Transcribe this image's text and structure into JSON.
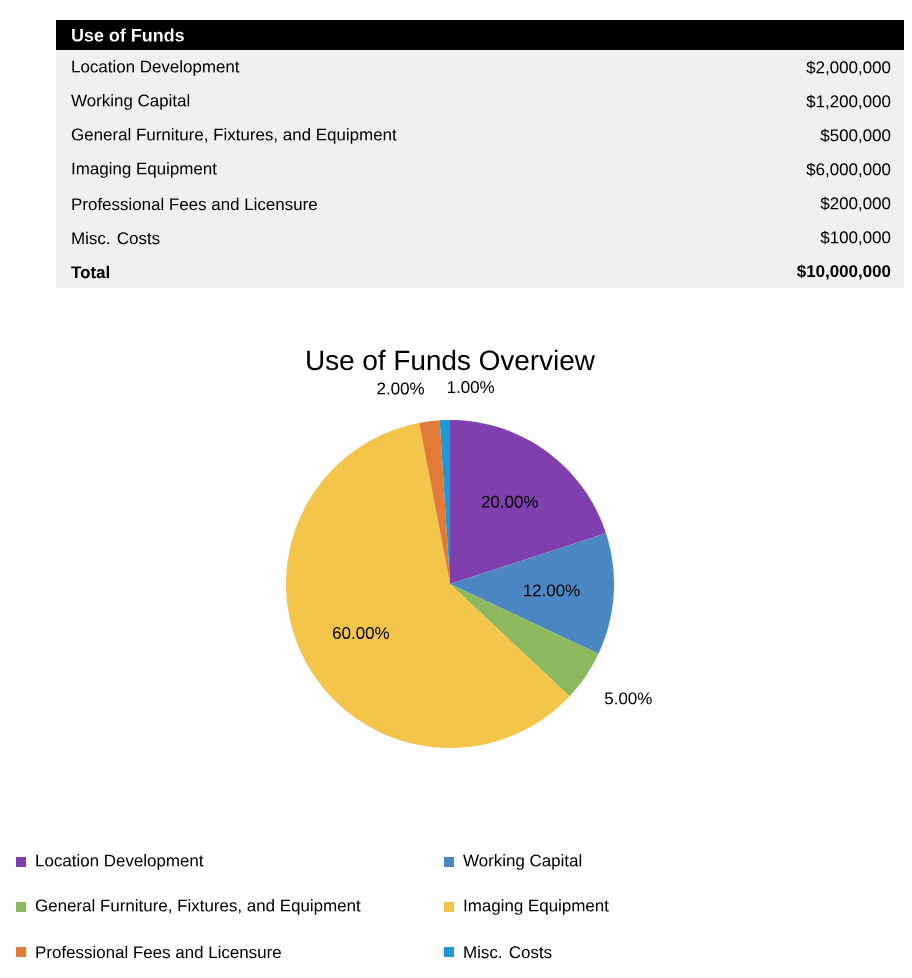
{
  "chart_data": [
    {
      "type": "other",
      "title": "Use of Funds",
      "annotations": [
        "Location Development",
        "$2,000,000",
        "Working Capital",
        "$1,200,000",
        "General Furniture, Fixtures, and Equipment",
        "$500,000",
        "Imaging Equipment",
        "$6,000,000",
        "Professional Fees and Licensure",
        "$200,000",
        "Misc. Costs",
        "$100,000",
        "Total",
        "$10,000,000"
      ]
    },
    {
      "type": "pie",
      "title": "Use of Funds Overview",
      "categories": [
        "Location Development",
        "Working Capital",
        "General Furniture, Fixtures, and Equipment",
        "Imaging Equipment",
        "Professional Fees and Licensure",
        "Misc. Costs"
      ],
      "values": [
        20,
        12,
        5,
        60,
        2,
        1
      ],
      "value_labels": [
        "20.00%",
        "12.00%",
        "5.00%",
        "60.00%",
        "2.00%",
        "1.00%"
      ],
      "colors": [
        "#7f3fae",
        "#4b87c2",
        "#8db95e",
        "#f3c54b",
        "#e27b3a",
        "#1d9ad6"
      ],
      "legend": "bottom"
    }
  ]
}
